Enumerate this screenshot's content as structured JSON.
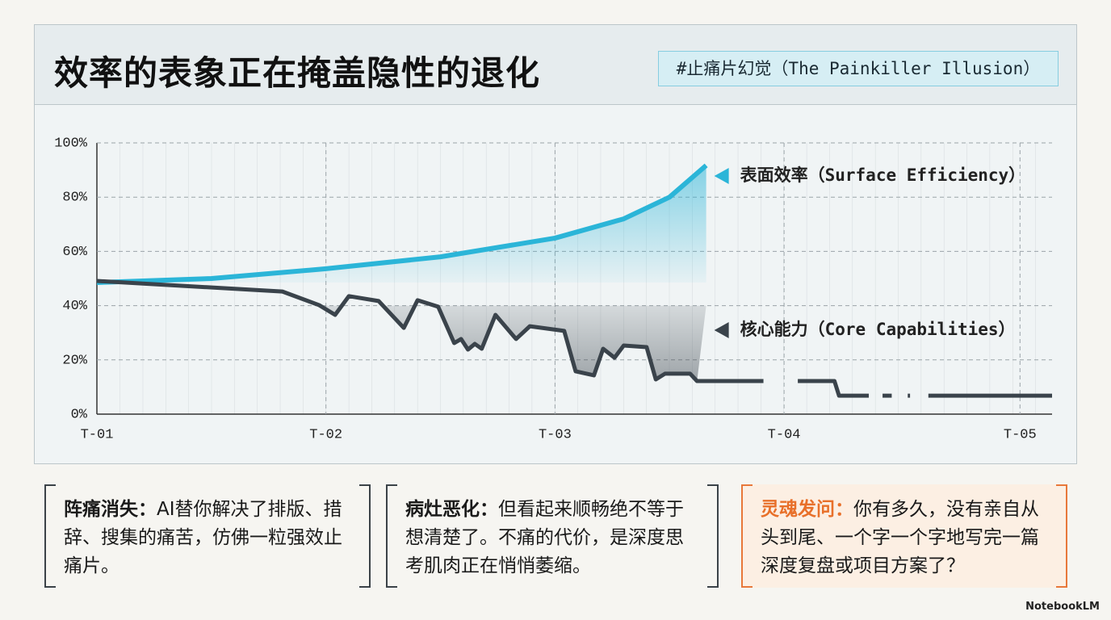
{
  "header": {
    "title": "效率的表象正在掩盖隐性的退化",
    "tag": "#止痛片幻觉（The Painkiller Illusion）"
  },
  "chart_data": {
    "type": "line",
    "xlim": [
      0,
      4.17
    ],
    "ylim": [
      0,
      100
    ],
    "xticks": [
      {
        "value": 0,
        "label": "T-01"
      },
      {
        "value": 1,
        "label": "T-02"
      },
      {
        "value": 2,
        "label": "T-03"
      },
      {
        "value": 3,
        "label": "T-04"
      },
      {
        "value": 4.03,
        "label": "T-05"
      }
    ],
    "yticks": [
      {
        "value": 0,
        "label": "0%"
      },
      {
        "value": 20,
        "label": "20%"
      },
      {
        "value": 40,
        "label": "40%"
      },
      {
        "value": 60,
        "label": "60%"
      },
      {
        "value": 80,
        "label": "80%"
      },
      {
        "value": 100,
        "label": "100%"
      }
    ],
    "grid": true,
    "series": [
      {
        "name": "表面效率（Surface Efficiency）",
        "color": "#2bb5d8",
        "x": [
          0,
          0.5,
          1,
          1.5,
          2,
          2.3,
          2.5,
          2.66
        ],
        "values": [
          48.5,
          50,
          53.6,
          58,
          64.9,
          72,
          80,
          91.7
        ]
      },
      {
        "name": "核心能力（Core Capabilities）",
        "color": "#3a434b",
        "x": [
          0,
          0.81,
          0.97,
          1.04,
          1.1,
          1.23,
          1.34,
          1.4,
          1.49,
          1.56,
          1.59,
          1.62,
          1.65,
          1.68,
          1.74,
          1.83,
          1.89,
          2.04,
          2.09,
          2.17,
          2.21,
          2.26,
          2.3,
          2.4,
          2.44,
          2.48,
          2.59,
          2.62,
          2.8,
          2.91,
          2.95,
          3.06,
          3.22,
          3.24,
          3.37,
          3.4,
          3.43,
          3.47,
          3.5,
          3.54,
          3.55,
          3.6,
          3.63,
          4.17
        ],
        "values": [
          49.1,
          45.2,
          40.2,
          36.6,
          43.5,
          41.7,
          31.8,
          42,
          39.6,
          26.2,
          27.7,
          23.8,
          25.9,
          24.1,
          36.6,
          27.7,
          32.4,
          30.7,
          15.8,
          14.3,
          24.1,
          20.8,
          25.3,
          24.7,
          12.8,
          14.9,
          14.9,
          12.2,
          12.2,
          12.2,
          null,
          12.2,
          12.2,
          6.8,
          6.8,
          null,
          6.8,
          6.8,
          null,
          6.8,
          6.8,
          null,
          6.8,
          6.8
        ]
      }
    ]
  },
  "cards": [
    {
      "heading": "阵痛消失：",
      "text": "AI替你解决了排版、措辞、搜集的痛苦，仿佛一粒强效止痛片。"
    },
    {
      "heading": "病灶恶化：",
      "text": "但看起来顺畅绝不等于想清楚了。不痛的代价，是深度思考肌肉正在悄悄萎缩。"
    },
    {
      "heading": "灵魂发问：",
      "text": "你有多久，没有亲自从头到尾、一个字一个字地写完一篇深度复盘或项目方案了？"
    }
  ],
  "brand": "NotebookLM"
}
